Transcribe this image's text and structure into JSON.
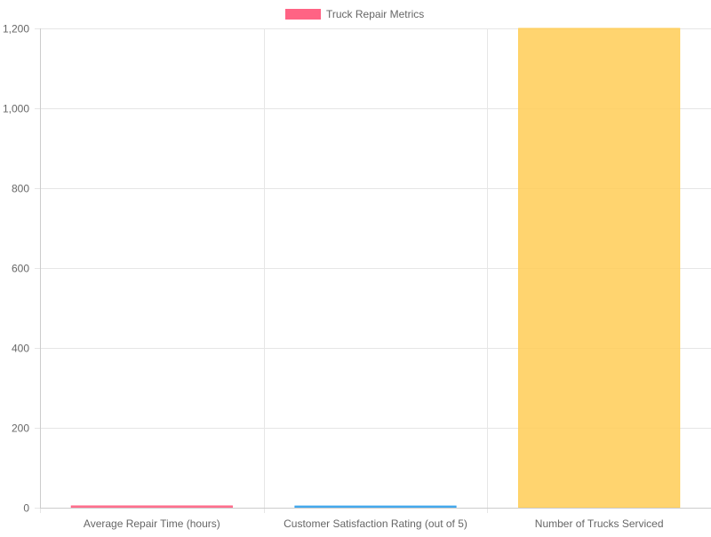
{
  "chart_data": {
    "type": "bar",
    "categories": [
      "Average Repair Time (hours)",
      "Customer Satisfaction Rating (out of 5)",
      "Number of Trucks Serviced"
    ],
    "series": [
      {
        "name": "Truck Repair Metrics",
        "values": [
          4.5,
          4.2,
          1200
        ],
        "colors": [
          "#ff6384",
          "#36a2eb",
          "#ffcd56"
        ]
      }
    ],
    "ylim": [
      0,
      1200
    ],
    "yticks": [
      0,
      200,
      400,
      600,
      800,
      1000,
      1200
    ],
    "ytick_labels": [
      "0",
      "200",
      "400",
      "600",
      "800",
      "1,000",
      "1,200"
    ],
    "grid": true,
    "legend_position": "top-center",
    "legend_swatch_color": "#ff6384",
    "bar_fill_alpha": 0.85,
    "colors": {
      "grid": "#e6e6e6",
      "axis": "#cccccc",
      "tick_text": "#666666"
    }
  }
}
